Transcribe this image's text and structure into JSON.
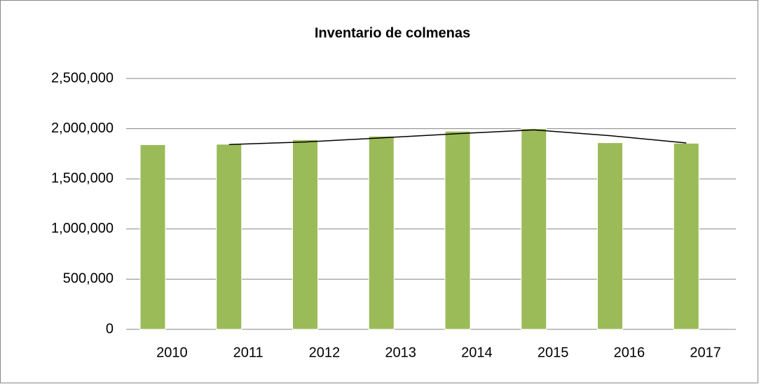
{
  "chart_data": {
    "type": "bar",
    "title": "Inventario de colmenas",
    "categories": [
      "2010",
      "2011",
      "2012",
      "2013",
      "2014",
      "2015",
      "2016",
      "2017"
    ],
    "values": [
      1840000,
      1845000,
      1890000,
      1925000,
      1975000,
      2000000,
      1860000,
      1855000
    ],
    "color": "#9bbb59",
    "ylim": [
      0,
      2500000
    ],
    "yticks": [
      0,
      {
        "value": 500000,
        "label": "500,000"
      },
      {
        "value": 1000000,
        "label": "1,000,000"
      },
      {
        "value": 1500000,
        "label": "1,500,000"
      },
      {
        "value": 2000000,
        "label": "2,000,000"
      },
      {
        "value": 2500000,
        "label": "2,500,000"
      }
    ],
    "grid": true,
    "trendline": {
      "type": "moving_average",
      "period": 2,
      "color": "#000000"
    }
  }
}
